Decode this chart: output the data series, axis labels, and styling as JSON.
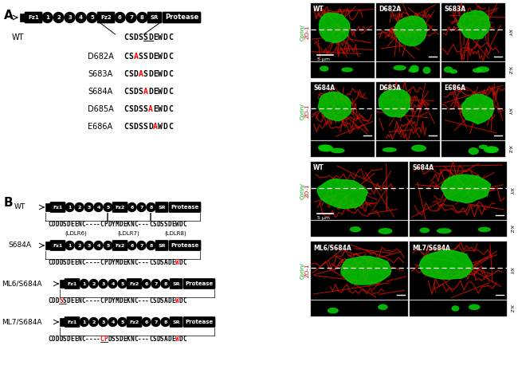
{
  "panel_A_label": "A",
  "panel_B_label": "B",
  "wt_seq": "CSDSSDEWDC",
  "wt_underline": [
    4,
    5
  ],
  "mutants_A": [
    {
      "name": "D682A",
      "seq": "CSASSDEWDC",
      "red": [
        2
      ]
    },
    {
      "name": "S683A",
      "seq": "CSDASDEWDC",
      "red": [
        3
      ]
    },
    {
      "name": "S684A",
      "seq": "CSDSADEWDC",
      "red": [
        4
      ]
    },
    {
      "name": "D685A",
      "seq": "CSDSSAEWDC",
      "red": [
        5
      ]
    },
    {
      "name": "E686A",
      "seq": "CSDSSDAWDC",
      "red": [
        6
      ]
    }
  ],
  "B_rows": [
    {
      "name": "WT",
      "seq": "CDDDSDEENC----CPDYMDEKNC---CSDSSDEWDC",
      "ldlr": [
        "(LDLR6)",
        "(LDLR7)",
        "(LDLR8)"
      ],
      "red": [],
      "underline": []
    },
    {
      "name": "S684A",
      "seq": "CDDDSDEENC----CPDYMDEKNC---CSDSADEWDC",
      "ldlr": [],
      "red": [
        34
      ],
      "underline": []
    },
    {
      "name": "ML6/S684A",
      "seq": "CDDSSDEENC----CPDYMDEKNC---CSDSADEWDC",
      "ldlr": [],
      "red": [
        3,
        34
      ],
      "underline": [
        3,
        4
      ]
    },
    {
      "name": "ML7/S684A",
      "seq": "CDDDSDEENC----CPDSSDEKNC---CSDSADEWDC",
      "ldlr": [],
      "red": [
        14,
        15,
        34
      ],
      "underline": [
        14,
        15
      ]
    }
  ],
  "right_A_top_labels": [
    "WT",
    "D682A",
    "S683A"
  ],
  "right_A_bot_labels": [
    "S684A",
    "D685A",
    "E686A"
  ],
  "right_B_top_labels": [
    "WT",
    "S684A"
  ],
  "right_B_bot_labels": [
    "ML6/S684A",
    "ML7/S684A"
  ],
  "corin_color": "#00cc00",
  "zo1_color": "#ff2200",
  "red_network_color": "#cc1100",
  "green_cell_color": "#00bb00"
}
